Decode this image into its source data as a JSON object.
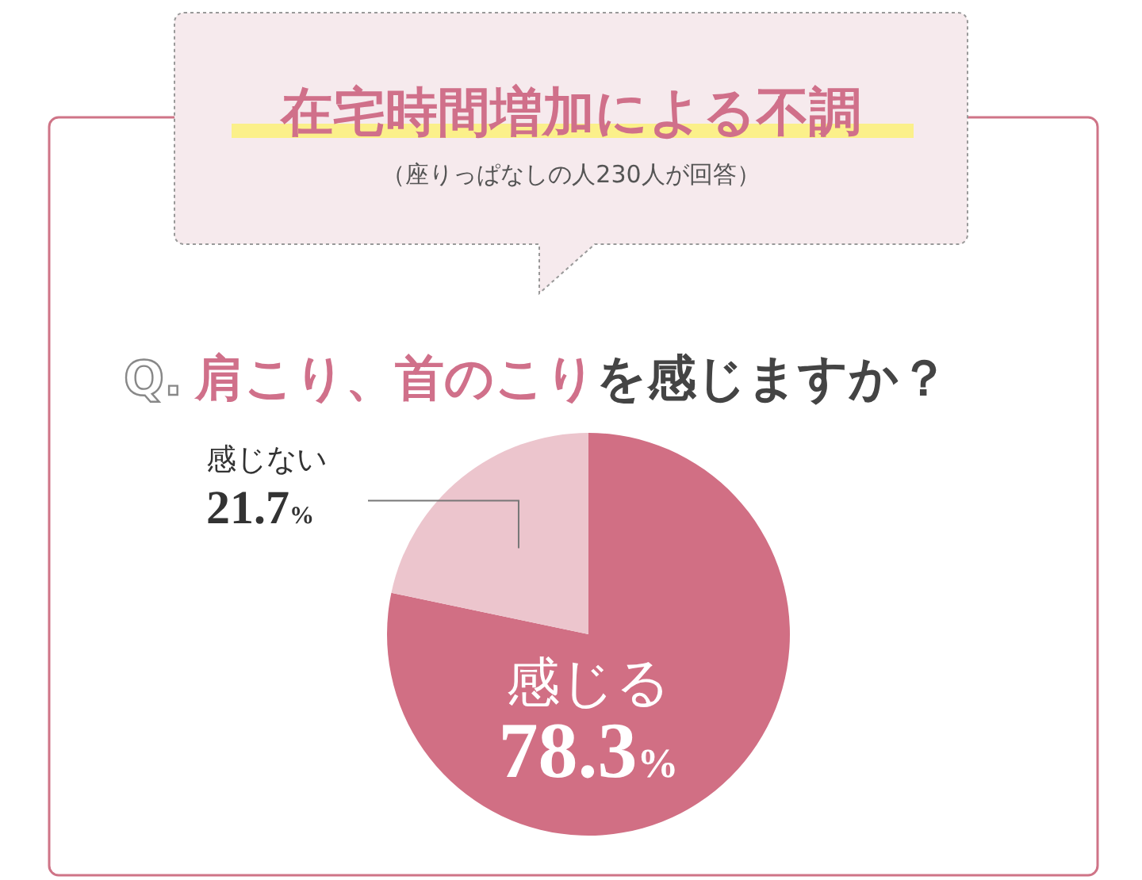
{
  "chart_data": {
    "type": "pie",
    "title": "在宅時間増加による不調",
    "subtitle": "（座りっぱなしの人230人が回答）",
    "annotations": [
      "Q.",
      "肩こり、首のこり",
      "を感じますか？"
    ],
    "categories": [
      "感じる",
      "感じない"
    ],
    "values": [
      78.3,
      21.7
    ],
    "colors": [
      "#d16f84",
      "#ecc5cd"
    ],
    "value_labels": [
      "78.3%",
      "21.7%"
    ]
  }
}
